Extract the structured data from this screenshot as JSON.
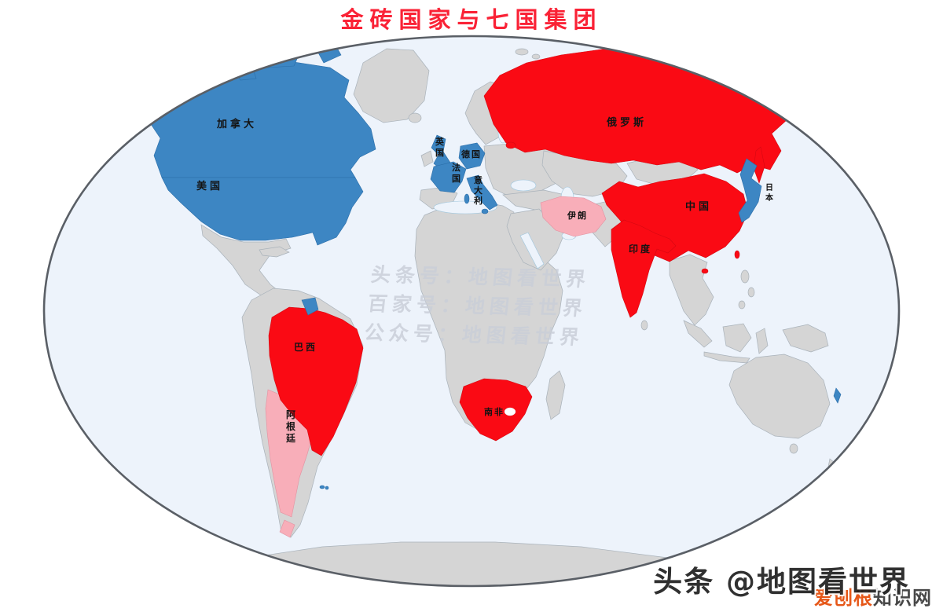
{
  "title": "金砖国家与七国集团",
  "groups": {
    "brics": {
      "color": "#fa0a14",
      "members": [
        "俄罗斯",
        "中国",
        "印度",
        "巴西",
        "南非"
      ]
    },
    "g7": {
      "color": "#3d86c3",
      "members": [
        "美国",
        "加拿大",
        "英国",
        "法国",
        "德国",
        "意大利",
        "日本"
      ]
    },
    "highlighted_other": {
      "color": "#f8aeb9",
      "members": [
        "伊朗",
        "阿根廷"
      ]
    }
  },
  "colors": {
    "ocean": "#edf3fb",
    "other_land": "#d5d5d5",
    "map_outline": "#5a5f66",
    "title_red": "#fa2236",
    "watermark_gray": "#c9ced8",
    "footer_orange": "#e65718",
    "footer_dark": "#474747"
  },
  "map": {
    "labels": {
      "canada": {
        "text": "加拿大"
      },
      "usa": {
        "text": "美国"
      },
      "russia": {
        "text": "俄罗斯"
      },
      "china": {
        "text": "中国"
      },
      "india": {
        "text": "印度"
      },
      "brazil": {
        "text": "巴西"
      },
      "south_africa": {
        "text": "南非"
      },
      "iran": {
        "text": "伊朗"
      },
      "uk": {
        "text": "英国"
      },
      "germany": {
        "text": "德国"
      },
      "france": {
        "text": "法国"
      },
      "italy": {
        "text": "意大利"
      },
      "argentina": {
        "text": "阿根廷"
      },
      "japan": {
        "text": "日本"
      }
    }
  },
  "watermark": {
    "line1": "头条号：地图看世界",
    "line2": "百家号：地图看世界",
    "line3": "公众号：地图看世界"
  },
  "footer": {
    "main": "头条 @地图看世界",
    "brand_orange": "爱刨根",
    "brand_dark": "知识网"
  }
}
